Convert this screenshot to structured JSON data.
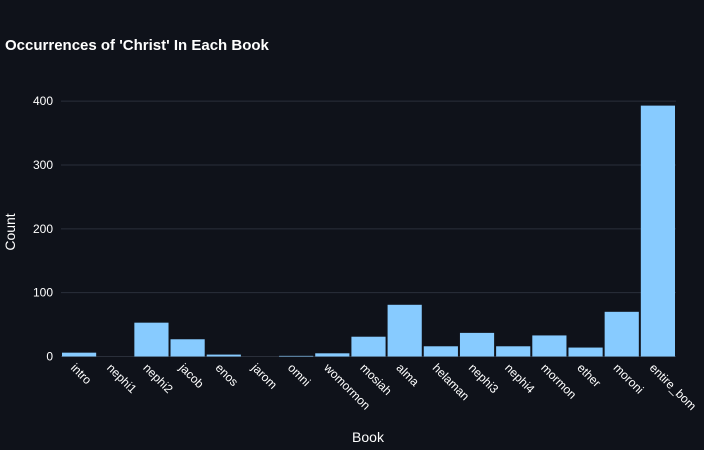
{
  "chart_data": {
    "type": "bar",
    "title": "Occurrences of 'Christ' In Each Book",
    "xlabel": "Book",
    "ylabel": "Count",
    "categories": [
      "intro",
      "nephi1",
      "nephi2",
      "jacob",
      "enos",
      "jarom",
      "omni",
      "womormon",
      "mosiah",
      "alma",
      "helaman",
      "nephi3",
      "nephi4",
      "mormon",
      "ether",
      "moroni",
      "entire_bom"
    ],
    "values": [
      6,
      0,
      53,
      27,
      3,
      0,
      1,
      5,
      31,
      81,
      16,
      37,
      16,
      33,
      14,
      70,
      393
    ],
    "ylim": [
      0,
      430
    ],
    "yticks": [
      0,
      100,
      200,
      300,
      400
    ],
    "bar_color": "#87cbff",
    "background": "#0f121a",
    "grid_color": "#2a2f3a",
    "grid": true,
    "legend": "none"
  }
}
